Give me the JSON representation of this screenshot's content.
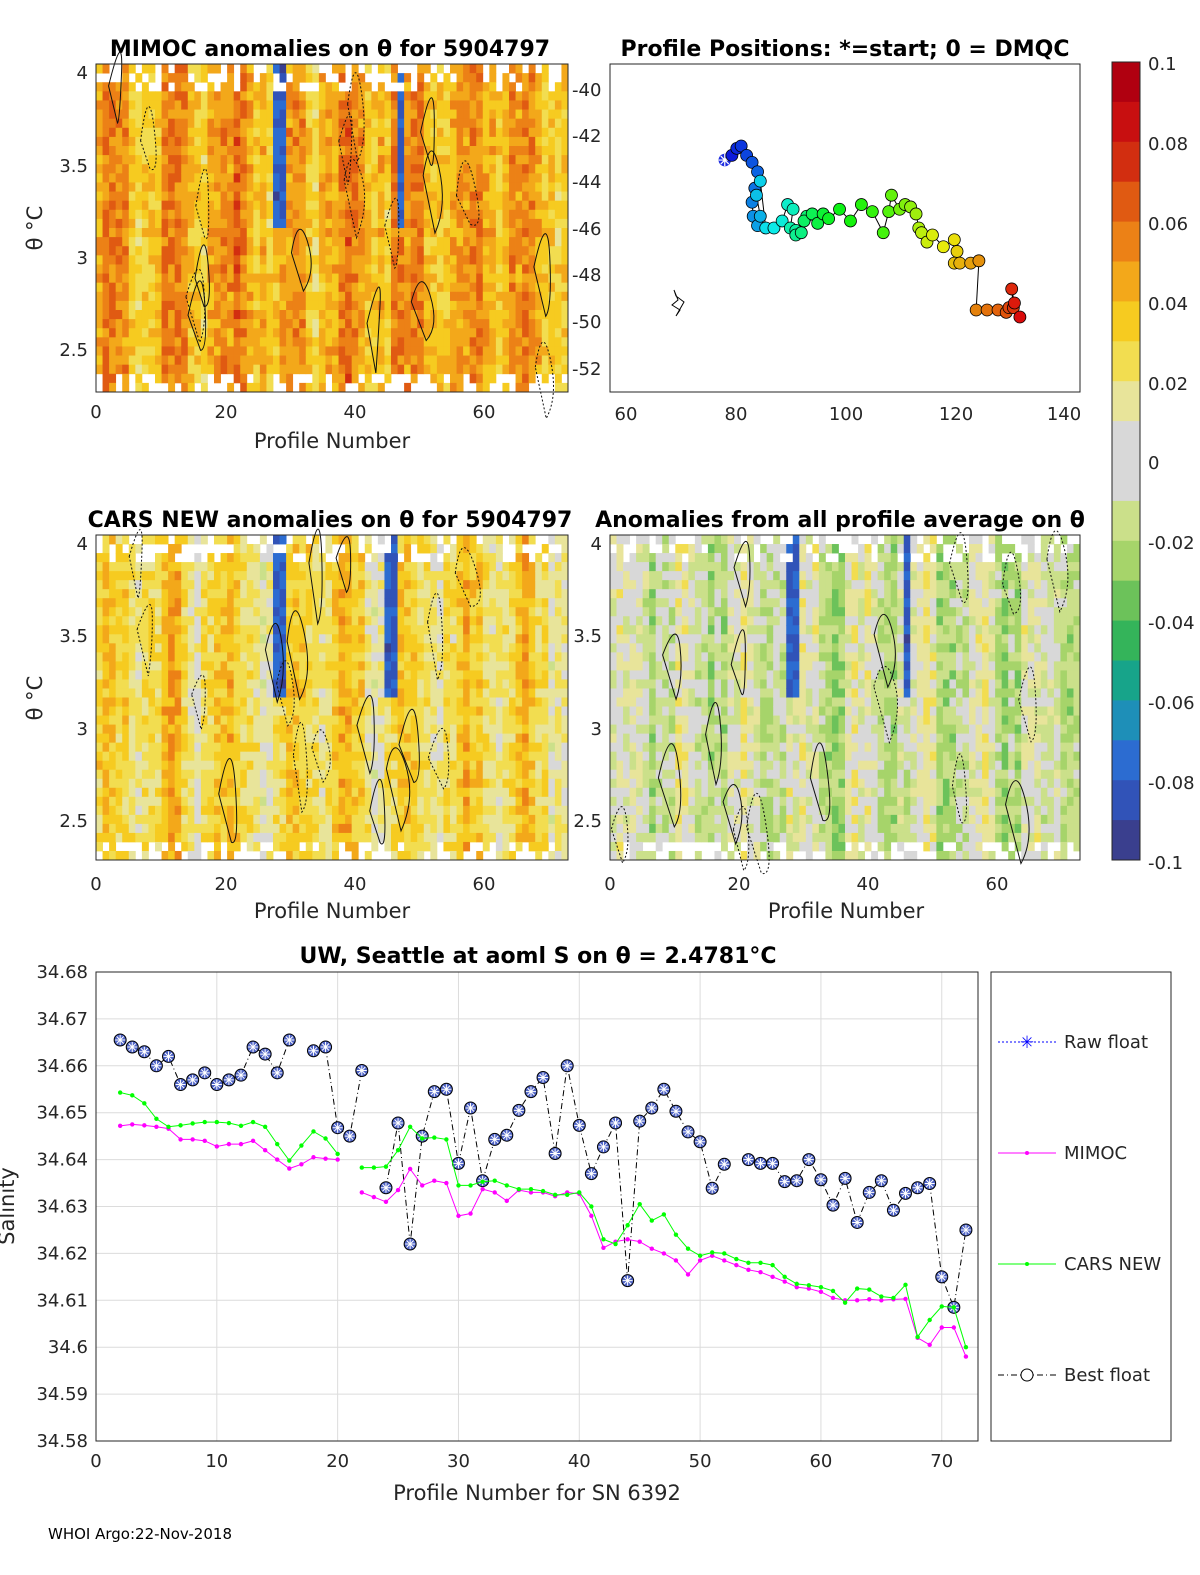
{
  "footer": "WHOI Argo:22-Nov-2018",
  "panels": {
    "mimoc": {
      "title": "MIMOC anomalies on θ  for 5904797",
      "xlabel": "Profile Number",
      "ylabel": "θ °C",
      "xticks": [
        "0",
        "20",
        "40",
        "60"
      ],
      "yticks": [
        "2.5",
        "3",
        "3.5",
        "4"
      ]
    },
    "positions": {
      "title": "Profile Positions: *=start; 0 = DMQC",
      "xticks": [
        "60",
        "80",
        "100",
        "120",
        "140"
      ],
      "yticks": [
        "-40",
        "-42",
        "-44",
        "-46",
        "-48",
        "-50",
        "-52"
      ]
    },
    "cars": {
      "title": "CARS NEW anomalies on θ for 5904797",
      "xlabel": "Profile Number",
      "ylabel": "θ °C",
      "xticks": [
        "0",
        "20",
        "40",
        "60"
      ],
      "yticks": [
        "2.5",
        "3",
        "3.5",
        "4"
      ]
    },
    "allavg": {
      "title": "Anomalies from all profile average on θ",
      "xlabel": "Profile Number",
      "xticks": [
        "0",
        "20",
        "40",
        "60"
      ],
      "yticks": [
        "2.5",
        "3",
        "3.5",
        "4"
      ]
    }
  },
  "colorbar": {
    "ticks": [
      "0.1",
      "0.08",
      "0.06",
      "0.04",
      "0.02",
      "0",
      "-0.02",
      "-0.04",
      "-0.06",
      "-0.08",
      "-0.1"
    ]
  },
  "legend": [
    "Raw float",
    "MIMOC",
    "CARS NEW",
    "Best float"
  ],
  "colors": {
    "raw": "#0000ff",
    "mimoc": "#ff00ff",
    "cars": "#00ff00",
    "best": "#000000",
    "marker_fill": "#4e63c6"
  },
  "chart_data": {
    "type": "line",
    "title": "UW, Seattle at aoml S on θ = 2.4781°C",
    "xlabel": "Profile Number for SN 6392",
    "ylabel": "Salinity",
    "xlim": [
      0,
      73
    ],
    "ylim": [
      34.58,
      34.68
    ],
    "xticks": [
      "0",
      "10",
      "20",
      "30",
      "40",
      "50",
      "60",
      "70"
    ],
    "yticks": [
      "34.58",
      "34.59",
      "34.6",
      "34.61",
      "34.62",
      "34.63",
      "34.64",
      "34.65",
      "34.66",
      "34.67",
      "34.68"
    ],
    "series": [
      {
        "name": "Best float",
        "x": [
          2,
          3,
          4,
          5,
          6,
          7,
          8,
          9,
          10,
          11,
          12,
          13,
          14,
          15,
          16,
          17,
          18,
          19,
          20,
          21,
          22,
          23,
          24,
          25,
          26,
          27,
          28,
          29,
          30,
          31,
          32,
          33,
          34,
          35,
          36,
          37,
          38,
          39,
          40,
          41,
          42,
          43,
          44,
          45,
          46,
          47,
          48,
          49,
          50,
          51,
          52,
          53,
          54,
          55,
          56,
          57,
          58,
          59,
          60,
          61,
          62,
          63,
          64,
          65,
          66,
          67,
          68,
          69,
          70,
          71,
          72
        ],
        "values": [
          34.6655,
          34.664,
          34.663,
          34.66,
          34.662,
          34.656,
          34.657,
          34.6585,
          34.656,
          34.657,
          34.658,
          34.664,
          34.6625,
          34.6585,
          34.6655,
          null,
          34.6632,
          34.664,
          34.6468,
          34.645,
          34.659,
          null,
          34.634,
          34.6478,
          34.622,
          34.645,
          34.6545,
          34.655,
          34.6392,
          34.651,
          34.6355,
          34.6443,
          34.6452,
          34.6505,
          34.6545,
          34.6575,
          34.6413,
          34.66,
          34.6473,
          34.637,
          34.6427,
          34.6478,
          34.6142,
          34.6482,
          34.651,
          34.655,
          34.6503,
          34.6459,
          34.6438,
          34.6339,
          34.639,
          null,
          34.64,
          34.6392,
          34.6392,
          34.6353,
          34.6355,
          34.64,
          34.6357,
          34.6303,
          34.636,
          34.6266,
          34.633,
          34.6355,
          34.6292,
          34.6328,
          34.634,
          34.6349,
          34.615,
          34.6085,
          34.625
        ]
      },
      {
        "name": "MIMOC",
        "x": [
          2,
          3,
          4,
          5,
          6,
          7,
          8,
          9,
          10,
          11,
          12,
          13,
          14,
          15,
          16,
          17,
          18,
          19,
          20,
          21,
          22,
          23,
          24,
          25,
          26,
          27,
          28,
          29,
          30,
          31,
          32,
          33,
          34,
          35,
          36,
          37,
          38,
          39,
          40,
          41,
          42,
          43,
          44,
          45,
          46,
          47,
          48,
          49,
          50,
          51,
          52,
          53,
          54,
          55,
          56,
          57,
          58,
          59,
          60,
          61,
          62,
          63,
          64,
          65,
          66,
          67,
          68,
          69,
          70,
          71,
          72
        ],
        "values": [
          34.6472,
          34.6475,
          34.6473,
          34.647,
          34.6466,
          34.6443,
          34.6443,
          34.644,
          34.6428,
          34.6433,
          34.6433,
          34.644,
          34.642,
          34.64,
          34.6381,
          34.639,
          34.6405,
          34.6402,
          34.64,
          null,
          34.633,
          34.632,
          34.631,
          34.6335,
          34.638,
          34.6345,
          34.6355,
          34.635,
          34.628,
          34.6285,
          34.6337,
          34.633,
          34.6312,
          34.6335,
          34.633,
          34.633,
          34.6322,
          34.633,
          34.6327,
          34.628,
          34.6212,
          34.6225,
          34.623,
          34.6225,
          34.621,
          34.62,
          34.6185,
          34.6155,
          34.6185,
          34.6195,
          34.6185,
          34.6175,
          34.6165,
          34.616,
          34.615,
          34.614,
          34.6128,
          34.6125,
          34.6118,
          34.6105,
          34.61,
          34.61,
          34.6102,
          34.61,
          34.6102,
          34.6103,
          34.602,
          34.6005,
          34.6042,
          34.6042,
          34.598
        ]
      },
      {
        "name": "CARS NEW",
        "x": [
          2,
          3,
          4,
          5,
          6,
          7,
          8,
          9,
          10,
          11,
          12,
          13,
          14,
          15,
          16,
          17,
          18,
          19,
          20,
          21,
          22,
          23,
          24,
          25,
          26,
          27,
          28,
          29,
          30,
          31,
          32,
          33,
          34,
          35,
          36,
          37,
          38,
          39,
          40,
          41,
          42,
          43,
          44,
          45,
          46,
          47,
          48,
          49,
          50,
          51,
          52,
          53,
          54,
          55,
          56,
          57,
          58,
          59,
          60,
          61,
          62,
          63,
          64,
          65,
          66,
          67,
          68,
          69,
          70,
          71,
          72
        ],
        "values": [
          34.6543,
          34.6537,
          34.652,
          34.6487,
          34.647,
          34.6473,
          34.6477,
          34.648,
          34.648,
          34.6478,
          34.6472,
          34.648,
          34.647,
          34.6433,
          34.6398,
          34.643,
          34.646,
          34.6445,
          34.6412,
          null,
          34.6383,
          34.6383,
          34.6385,
          34.642,
          34.647,
          34.6445,
          34.6447,
          34.6443,
          34.6345,
          34.6345,
          34.6353,
          34.6355,
          34.6345,
          34.6337,
          34.6337,
          34.6333,
          34.6325,
          34.6325,
          34.633,
          34.63,
          34.623,
          34.622,
          34.626,
          34.6305,
          34.627,
          34.6283,
          34.624,
          34.621,
          34.6195,
          34.6202,
          34.62,
          34.6188,
          34.618,
          34.618,
          34.6175,
          34.615,
          34.6135,
          34.6132,
          34.6128,
          34.612,
          34.6095,
          34.6125,
          34.6123,
          34.6108,
          34.6105,
          34.6133,
          34.6022,
          34.6058,
          34.6087,
          34.6085,
          34.6
        ]
      }
    ]
  },
  "track": [
    {
      "lon": 78.0,
      "lat": -43.1,
      "start": true
    },
    {
      "lon": 79.3,
      "lat": -42.9
    },
    {
      "lon": 80.2,
      "lat": -42.6
    },
    {
      "lon": 81.0,
      "lat": -42.5
    },
    {
      "lon": 82.0,
      "lat": -42.9
    },
    {
      "lon": 83.0,
      "lat": -43.2
    },
    {
      "lon": 84.0,
      "lat": -43.6
    },
    {
      "lon": 83.5,
      "lat": -44.3
    },
    {
      "lon": 83.0,
      "lat": -44.9
    },
    {
      "lon": 83.2,
      "lat": -45.5
    },
    {
      "lon": 84.0,
      "lat": -45.9
    },
    {
      "lon": 84.5,
      "lat": -45.5
    },
    {
      "lon": 83.8,
      "lat": -44.6
    },
    {
      "lon": 84.5,
      "lat": -44.0
    },
    {
      "lon": 85.5,
      "lat": -46.0
    },
    {
      "lon": 87.0,
      "lat": -46.0
    },
    {
      "lon": 88.5,
      "lat": -45.7
    },
    {
      "lon": 89.5,
      "lat": -45.0
    },
    {
      "lon": 90.5,
      "lat": -45.2
    },
    {
      "lon": 90.0,
      "lat": -46.0
    },
    {
      "lon": 91.0,
      "lat": -46.1
    },
    {
      "lon": 91.0,
      "lat": -46.3
    },
    {
      "lon": 92.0,
      "lat": -46.2
    },
    {
      "lon": 93.0,
      "lat": -45.5
    },
    {
      "lon": 92.5,
      "lat": -45.7
    },
    {
      "lon": 94.0,
      "lat": -45.4
    },
    {
      "lon": 95.0,
      "lat": -45.8
    },
    {
      "lon": 96.0,
      "lat": -45.4
    },
    {
      "lon": 97.0,
      "lat": -45.6
    },
    {
      "lon": 99.0,
      "lat": -45.2
    },
    {
      "lon": 101.0,
      "lat": -45.7
    },
    {
      "lon": 103.0,
      "lat": -45.0
    },
    {
      "lon": 105.0,
      "lat": -45.3
    },
    {
      "lon": 107.0,
      "lat": -46.2
    },
    {
      "lon": 108.0,
      "lat": -45.3
    },
    {
      "lon": 108.5,
      "lat": -44.6
    },
    {
      "lon": 110.0,
      "lat": -45.2
    },
    {
      "lon": 111.0,
      "lat": -45.0
    },
    {
      "lon": 112.0,
      "lat": -45.1
    },
    {
      "lon": 113.0,
      "lat": -45.4
    },
    {
      "lon": 113.5,
      "lat": -46.0
    },
    {
      "lon": 114.0,
      "lat": -46.2
    },
    {
      "lon": 115.0,
      "lat": -46.6
    },
    {
      "lon": 116.0,
      "lat": -46.3
    },
    {
      "lon": 118.0,
      "lat": -46.8
    },
    {
      "lon": 120.0,
      "lat": -46.5
    },
    {
      "lon": 120.5,
      "lat": -47.0
    },
    {
      "lon": 120.0,
      "lat": -47.5
    },
    {
      "lon": 121.0,
      "lat": -47.5
    },
    {
      "lon": 123.0,
      "lat": -47.5
    },
    {
      "lon": 124.5,
      "lat": -47.4
    },
    {
      "lon": 124.0,
      "lat": -49.5
    },
    {
      "lon": 126.0,
      "lat": -49.5
    },
    {
      "lon": 128.0,
      "lat": -49.5
    },
    {
      "lon": 129.5,
      "lat": -49.6
    },
    {
      "lon": 130.0,
      "lat": -49.4
    },
    {
      "lon": 130.8,
      "lat": -49.4
    },
    {
      "lon": 130.5,
      "lat": -48.6
    },
    {
      "lon": 131.0,
      "lat": -49.2
    },
    {
      "lon": 132.0,
      "lat": -49.8
    }
  ],
  "colorscale": [
    "#3a3f8e",
    "#3153b8",
    "#2c6cd1",
    "#1e8fb8",
    "#17a48a",
    "#34b45a",
    "#6cc25a",
    "#a6d46a",
    "#cbe08a",
    "#d8d8d8",
    "#e8e49a",
    "#f2dd50",
    "#f6cb20",
    "#f3a81a",
    "#ec8116",
    "#e05a12",
    "#d22e10",
    "#c80f10",
    "#b00010"
  ]
}
